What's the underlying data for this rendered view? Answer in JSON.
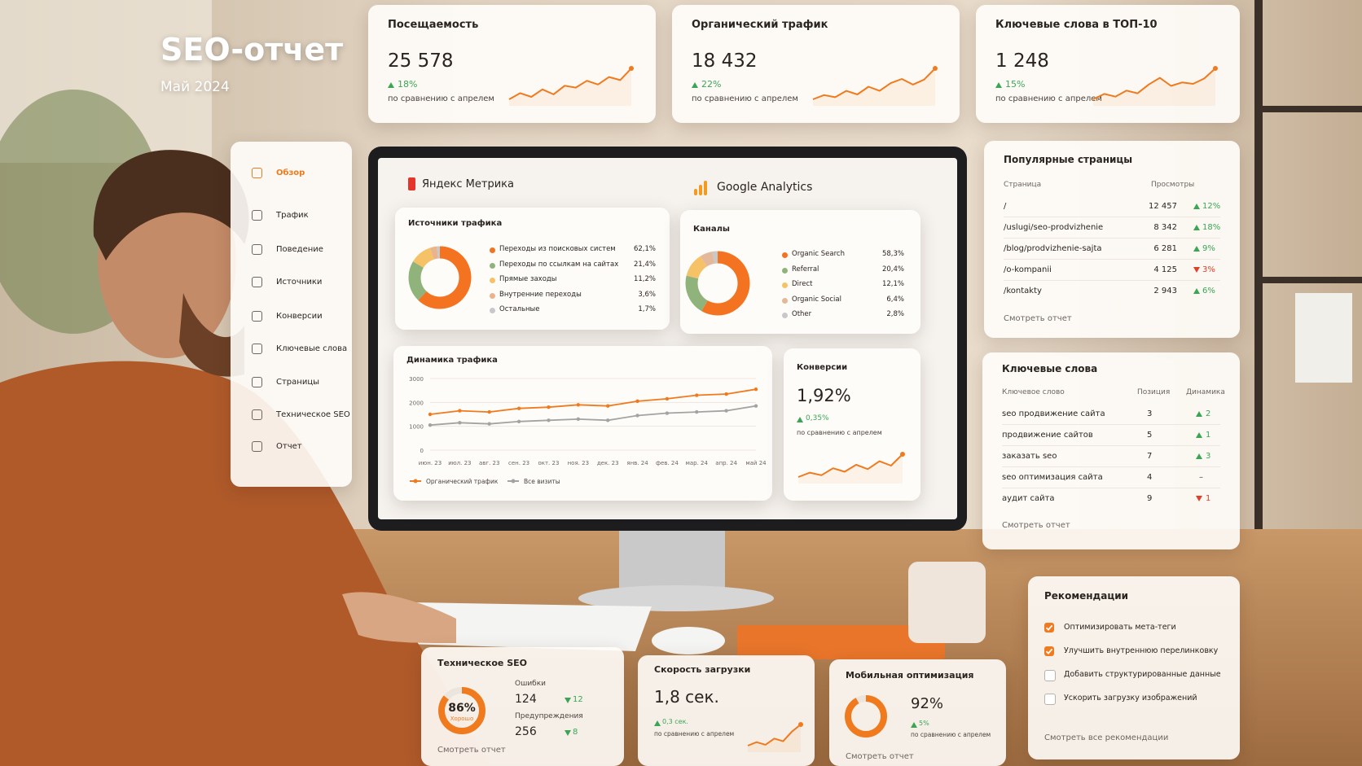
{
  "header": {
    "title": "SEO-отчет",
    "subtitle": "Май 2024"
  },
  "kpis": [
    {
      "title": "Посещаемость",
      "value": "25 578",
      "change": "18%",
      "note": "по сравнению с апрелем",
      "sparkline": {
        "type": "line",
        "color": "#f07a1e",
        "values": [
          4,
          5,
          4.4,
          5.6,
          4.8,
          6.2,
          5.9,
          7,
          6.4,
          7.6,
          7.1,
          9
        ]
      }
    },
    {
      "title": "Органический трафик",
      "value": "18 432",
      "change": "22%",
      "note": "по сравнению с апрелем",
      "sparkline": {
        "type": "line",
        "color": "#f07a1e",
        "values": [
          4,
          4.6,
          4.3,
          5.2,
          4.7,
          5.8,
          5.2,
          6.3,
          6.9,
          6.1,
          6.8,
          8.4
        ]
      }
    },
    {
      "title": "Ключевые слова в ТОП-10",
      "value": "1 248",
      "change": "15%",
      "note": "по сравнению с апрелем",
      "sparkline": {
        "type": "line",
        "color": "#f07a1e",
        "values": [
          4,
          4.8,
          4.4,
          5.3,
          4.9,
          6.2,
          7.2,
          6,
          6.5,
          6.3,
          7.1,
          8.6
        ]
      }
    }
  ],
  "menu": {
    "active": 0,
    "items": [
      "Обзор",
      "Трафик",
      "Поведение",
      "Источники",
      "Конверсии",
      "Ключевые слова",
      "Страницы",
      "Техническое SEO",
      "Отчет"
    ]
  },
  "yandex": {
    "brand": "Яндекс Метрика",
    "title": "Источники трафика",
    "chart_data": {
      "type": "donut",
      "categories": [
        "Переходы из поисковых систем",
        "Переходы по ссылкам на сайтах",
        "Прямые заходы",
        "Внутренние переходы",
        "Остальные"
      ],
      "values": [
        62.1,
        21.4,
        11.2,
        3.6,
        1.7
      ],
      "value_labels": [
        "62,1%",
        "21,4%",
        "11,2%",
        "3,6%",
        "1,7%"
      ],
      "colors": [
        "#f37321",
        "#8fb37a",
        "#f5c267",
        "#e9b38c",
        "#c8c8c8"
      ]
    }
  },
  "google": {
    "brand": "Google Analytics",
    "title": "Каналы",
    "chart_data": {
      "type": "donut",
      "categories": [
        "Organic Search",
        "Referral",
        "Direct",
        "Organic Social",
        "Other"
      ],
      "values": [
        58.3,
        20.4,
        12.1,
        6.4,
        2.8
      ],
      "value_labels": [
        "58,3%",
        "20,4%",
        "12,1%",
        "6,4%",
        "2,8%"
      ],
      "colors": [
        "#f37321",
        "#8fb37a",
        "#f5c267",
        "#e4b89a",
        "#c8c8c8"
      ]
    }
  },
  "dynamics": {
    "chart_data": {
      "type": "line",
      "title": "Динамика трафика",
      "categories": [
        "июн. 23",
        "июл. 23",
        "авг. 23",
        "сен. 23",
        "окт. 23",
        "ноя. 23",
        "дек. 23",
        "янв. 24",
        "фев. 24",
        "мар. 24",
        "апр. 24",
        "май 24"
      ],
      "series": [
        {
          "name": "Органический трафик",
          "color": "#f07a1e",
          "values": [
            1500,
            1650,
            1600,
            1750,
            1800,
            1900,
            1850,
            2050,
            2150,
            2300,
            2350,
            2550
          ]
        },
        {
          "name": "Все визиты",
          "color": "#a3a3a3",
          "values": [
            1050,
            1150,
            1100,
            1200,
            1250,
            1300,
            1250,
            1450,
            1550,
            1600,
            1650,
            1850
          ]
        }
      ],
      "ylim": [
        0,
        3000
      ],
      "yticks": [
        0,
        1000,
        2000,
        3000
      ],
      "grid": true
    }
  },
  "conversions": {
    "title": "Конверсии",
    "value": "1,92%",
    "change": "0,35%",
    "note": "по сравнению с апрелем",
    "sparkline": {
      "type": "line",
      "color": "#f07a1e",
      "values": [
        3,
        3.5,
        3.2,
        4,
        3.6,
        4.4,
        3.9,
        4.8,
        4.3,
        5.6
      ]
    }
  },
  "pages": {
    "title": "Популярные страницы",
    "headers": [
      "Страница",
      "Просмотры"
    ],
    "link": "Смотреть отчет",
    "rows": [
      {
        "page": "/",
        "views": "12 457",
        "change": "12%",
        "trend": "up"
      },
      {
        "page": "/uslugi/seo-prodvizhenie",
        "views": "8 342",
        "change": "18%",
        "trend": "up"
      },
      {
        "page": "/blog/prodvizhenie-sajta",
        "views": "6 281",
        "change": "9%",
        "trend": "up"
      },
      {
        "page": "/o-kompanii",
        "views": "4 125",
        "change": "3%",
        "trend": "down"
      },
      {
        "page": "/kontakty",
        "views": "2 943",
        "change": "6%",
        "trend": "up"
      }
    ]
  },
  "keywords": {
    "title": "Ключевые слова",
    "headers": [
      "Ключевое слово",
      "Позиция",
      "Динамика"
    ],
    "link": "Смотреть отчет",
    "rows": [
      {
        "keyword": "seo продвижение сайта",
        "position": 3,
        "change": "2",
        "trend": "up"
      },
      {
        "keyword": "продвижение сайтов",
        "position": 5,
        "change": "1",
        "trend": "up"
      },
      {
        "keyword": "заказать seo",
        "position": 7,
        "change": "3",
        "trend": "up"
      },
      {
        "keyword": "seo оптимизация сайта",
        "position": 4,
        "change": "–",
        "trend": null
      },
      {
        "keyword": "аудит сайта",
        "position": 9,
        "change": "1",
        "trend": "down"
      }
    ]
  },
  "recommendations": {
    "title": "Рекомендации",
    "link": "Смотреть все рекомендации",
    "items": [
      {
        "text": "Оптимизировать мета-теги",
        "checked": true
      },
      {
        "text": "Улучшить внутреннюю перелинковку",
        "checked": true
      },
      {
        "text": "Добавить структурированные данные",
        "checked": false
      },
      {
        "text": "Ускорить загрузку изображений",
        "checked": false
      }
    ]
  },
  "tech_seo": {
    "title": "Техническое SEO",
    "score": 86,
    "score_label": "86%",
    "score_note": "Хорошо",
    "link": "Смотреть отчет",
    "stats": [
      {
        "label": "Ошибки",
        "value": "124",
        "change": "12",
        "trend": "down"
      },
      {
        "label": "Предупреждения",
        "value": "256",
        "change": "8",
        "trend": "down"
      }
    ]
  },
  "speed": {
    "title": "Скорость загрузки",
    "value": "1,8 сек.",
    "change": "0,3 сек.",
    "note": "по сравнению с апрелем",
    "sparkline": {
      "type": "line",
      "color": "#f07a1e",
      "values": [
        3,
        3.4,
        3.1,
        3.8,
        3.5,
        4.6,
        5.4
      ]
    }
  },
  "mobile": {
    "title": "Мобильная оптимизация",
    "score": 92,
    "score_label": "92%",
    "change": "5%",
    "note": "по сравнению с апрелем",
    "link": "Смотреть отчет"
  }
}
